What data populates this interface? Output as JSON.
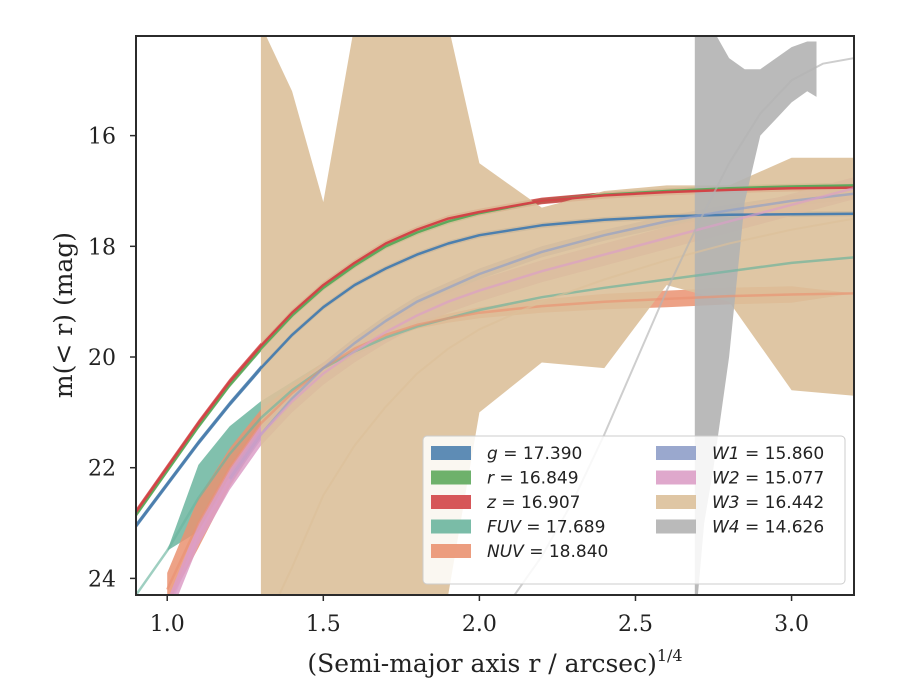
{
  "chart_data": {
    "type": "line",
    "xlabel": "(Semi-major axis r / arcsec)",
    "xlabel_sup": "1/4",
    "ylabel": "m(< r) (mag)",
    "xlim": [
      0.9,
      3.2
    ],
    "ylim": [
      24.3,
      14.2
    ],
    "y_inverted": true,
    "grid": false,
    "legend_position": "lower-right",
    "legend_columns": 2,
    "x_ticks": [
      1.0,
      1.5,
      2.0,
      2.5,
      3.0
    ],
    "x_tick_labels": [
      "1.0",
      "1.5",
      "2.0",
      "2.5",
      "3.0"
    ],
    "y_ticks": [
      16,
      18,
      20,
      22,
      24
    ],
    "y_tick_labels": [
      "16",
      "18",
      "20",
      "22",
      "24"
    ],
    "series": [
      {
        "name": "g",
        "label_value": "= 17.390",
        "color": "#4c7fae",
        "x": [
          0.9,
          1.0,
          1.1,
          1.2,
          1.3,
          1.4,
          1.5,
          1.6,
          1.7,
          1.8,
          1.9,
          2.0,
          2.2,
          2.4,
          2.6,
          2.8,
          3.0,
          3.2
        ],
        "y": [
          23.05,
          22.3,
          21.55,
          20.85,
          20.2,
          19.6,
          19.1,
          18.7,
          18.4,
          18.15,
          17.95,
          17.8,
          17.62,
          17.52,
          17.46,
          17.43,
          17.42,
          17.41
        ],
        "band": [
          0.05,
          0.05,
          0.05,
          0.05,
          0.05,
          0.05,
          0.05,
          0.05,
          0.05,
          0.05,
          0.05,
          0.05,
          0.05,
          0.05,
          0.05,
          0.05,
          0.05,
          0.05
        ]
      },
      {
        "name": "r",
        "label_value": "= 16.849",
        "color": "#5ea95c",
        "x": [
          0.9,
          1.0,
          1.1,
          1.2,
          1.3,
          1.4,
          1.5,
          1.6,
          1.7,
          1.8,
          1.9,
          2.0,
          2.2,
          2.4,
          2.6,
          2.8,
          3.0,
          3.2
        ],
        "y": [
          22.85,
          22.05,
          21.25,
          20.5,
          19.85,
          19.25,
          18.75,
          18.35,
          18.0,
          17.75,
          17.55,
          17.4,
          17.18,
          17.07,
          17.0,
          16.95,
          16.92,
          16.9
        ],
        "band": [
          0.05,
          0.05,
          0.05,
          0.05,
          0.05,
          0.05,
          0.05,
          0.05,
          0.05,
          0.05,
          0.05,
          0.05,
          0.05,
          0.05,
          0.05,
          0.05,
          0.05,
          0.05
        ]
      },
      {
        "name": "z",
        "label_value": "= 16.907",
        "color": "#d24447",
        "x": [
          0.9,
          1.0,
          1.1,
          1.2,
          1.3,
          1.4,
          1.5,
          1.6,
          1.7,
          1.8,
          1.9,
          2.0,
          2.2,
          2.4,
          2.6,
          2.8,
          3.0,
          3.2
        ],
        "y": [
          22.8,
          22.0,
          21.2,
          20.45,
          19.8,
          19.2,
          18.7,
          18.3,
          17.95,
          17.7,
          17.5,
          17.38,
          17.18,
          17.08,
          17.02,
          16.98,
          16.95,
          16.94
        ],
        "band": [
          0.06,
          0.06,
          0.06,
          0.06,
          0.06,
          0.06,
          0.06,
          0.06,
          0.06,
          0.06,
          0.06,
          0.06,
          0.06,
          0.06,
          0.06,
          0.06,
          0.06,
          0.06
        ]
      },
      {
        "name": "FUV",
        "label_value": "= 17.689",
        "color": "#6bb59f",
        "x": [
          0.9,
          1.0,
          1.1,
          1.2,
          1.3,
          1.4,
          1.5,
          1.6,
          1.7,
          1.8,
          2.0,
          2.2,
          2.4,
          2.6,
          2.8,
          3.0,
          3.2
        ],
        "y": [
          24.3,
          23.5,
          22.55,
          21.75,
          21.1,
          20.6,
          20.2,
          19.9,
          19.65,
          19.45,
          19.15,
          18.92,
          18.75,
          18.6,
          18.45,
          18.3,
          18.2
        ],
        "band": [
          0.0,
          0.0,
          0.6,
          0.5,
          0.3,
          0.15,
          0.1,
          0.08,
          0.05,
          0.04,
          0.03,
          0.02,
          0.02,
          0.02,
          0.02,
          0.02,
          0.02
        ]
      },
      {
        "name": "NUV",
        "label_value": "= 18.840",
        "color": "#ea9271",
        "x": [
          1.0,
          1.1,
          1.2,
          1.3,
          1.4,
          1.5,
          1.6,
          1.7,
          1.8,
          1.9,
          2.0,
          2.2,
          2.4,
          2.6,
          2.8,
          3.0,
          3.2
        ],
        "y": [
          24.2,
          23.0,
          22.0,
          21.2,
          20.65,
          20.2,
          19.85,
          19.6,
          19.42,
          19.3,
          19.2,
          19.08,
          19.0,
          18.95,
          18.9,
          18.87,
          18.85
        ],
        "band": [
          0.3,
          0.45,
          0.35,
          0.25,
          0.15,
          0.1,
          0.08,
          0.07,
          0.07,
          0.08,
          0.1,
          0.12,
          0.14,
          0.15,
          0.15,
          0.15,
          0.0
        ]
      },
      {
        "name": "W1",
        "label_value": "= 15.860",
        "color": "#8f9fc9",
        "x": [
          1.2,
          1.3,
          1.4,
          1.5,
          1.6,
          1.7,
          1.8,
          1.9,
          2.0,
          2.2,
          2.4,
          2.6,
          2.8,
          3.0,
          3.2
        ],
        "y": [
          22.2,
          21.4,
          20.75,
          20.2,
          19.75,
          19.35,
          19.0,
          18.75,
          18.5,
          18.1,
          17.8,
          17.55,
          17.35,
          17.18,
          17.05
        ],
        "band": [
          0.1,
          0.1,
          0.1,
          0.1,
          0.1,
          0.1,
          0.1,
          0.1,
          0.1,
          0.1,
          0.1,
          0.1,
          0.1,
          0.1,
          0.1
        ]
      },
      {
        "name": "W2",
        "label_value": "= 15.077",
        "color": "#dc9ec7",
        "x": [
          1.0,
          1.1,
          1.2,
          1.3,
          1.4,
          1.5,
          1.6,
          1.7,
          1.8,
          1.9,
          2.0,
          2.2,
          2.4,
          2.6,
          2.8,
          3.0,
          3.2
        ],
        "y": [
          24.6,
          23.2,
          22.2,
          21.4,
          20.8,
          20.3,
          19.9,
          19.55,
          19.25,
          19.0,
          18.8,
          18.45,
          18.15,
          17.85,
          17.55,
          17.25,
          16.95
        ],
        "band": [
          0.2,
          0.2,
          0.2,
          0.2,
          0.2,
          0.2,
          0.2,
          0.2,
          0.2,
          0.2,
          0.2,
          0.2,
          0.2,
          0.2,
          0.2,
          0.2,
          0.2
        ]
      },
      {
        "name": "W3",
        "label_value": "= 16.442",
        "color": "#dcc09a",
        "x": [
          1.3,
          1.4,
          1.5,
          1.6,
          1.7,
          1.8,
          1.9,
          2.0,
          2.2,
          2.4,
          2.6,
          2.8,
          3.0,
          3.2
        ],
        "y": [
          25.0,
          23.8,
          22.5,
          21.6,
          20.9,
          20.3,
          19.85,
          19.5,
          19.0,
          18.6,
          18.25,
          17.95,
          17.7,
          17.5
        ],
        "band_upper": [
          14.0,
          15.2,
          17.2,
          14.0,
          14.0,
          14.0,
          14.0,
          16.5,
          17.3,
          17.0,
          16.9,
          16.9,
          16.4,
          16.4
        ],
        "band_lower": [
          24.3,
          24.3,
          24.3,
          24.3,
          24.3,
          24.3,
          24.3,
          21.0,
          20.1,
          20.2,
          18.7,
          19.0,
          20.6,
          20.7
        ]
      },
      {
        "name": "W4",
        "label_value": "= 14.626",
        "color": "#b3b3b3",
        "x": [
          2.1,
          2.2,
          2.3,
          2.4,
          2.5,
          2.6,
          2.7,
          2.8,
          2.9,
          3.0,
          3.1,
          3.2
        ],
        "y": [
          24.4,
          23.6,
          22.6,
          21.4,
          20.1,
          18.8,
          17.6,
          16.5,
          15.6,
          15.0,
          14.7,
          14.6
        ],
        "band_x": [
          2.69,
          2.7,
          2.72,
          2.75,
          2.8,
          2.85,
          2.9,
          2.95,
          3.0,
          3.05,
          3.08
        ],
        "band_upper": [
          14.0,
          14.0,
          14.0,
          14.1,
          14.6,
          14.8,
          14.8,
          14.6,
          14.4,
          14.3,
          14.3
        ],
        "band_lower": [
          24.3,
          24.3,
          23.0,
          22.0,
          20.0,
          17.2,
          16.0,
          15.7,
          15.4,
          15.2,
          15.3
        ]
      }
    ]
  }
}
